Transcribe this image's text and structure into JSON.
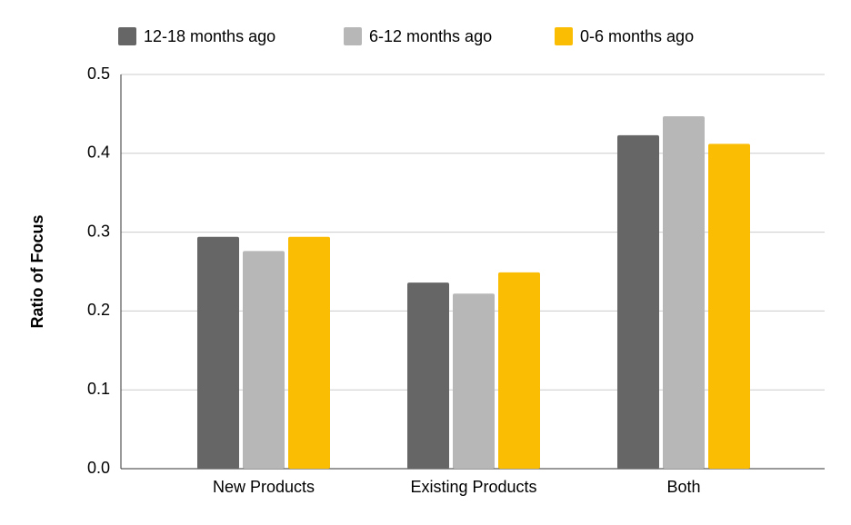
{
  "chart_data": {
    "type": "bar",
    "y_label": "Ratio of Focus",
    "categories": [
      "New Products",
      "Existing Products",
      "Both"
    ],
    "series": [
      {
        "name": "12-18 months ago",
        "color": "#666666",
        "values": [
          0.294,
          0.236,
          0.423
        ]
      },
      {
        "name": "6-12 months ago",
        "color": "#b7b7b7",
        "values": [
          0.276,
          0.222,
          0.447
        ]
      },
      {
        "name": "0-6 months ago",
        "color": "#fbbc04",
        "values": [
          0.294,
          0.249,
          0.412
        ]
      }
    ],
    "ylim": [
      0,
      0.5
    ],
    "yticks": [
      {
        "value": 0,
        "label": "0.0"
      },
      0.1,
      0.2,
      0.3,
      0.4,
      0.5
    ],
    "grid": true,
    "legend": "top"
  }
}
